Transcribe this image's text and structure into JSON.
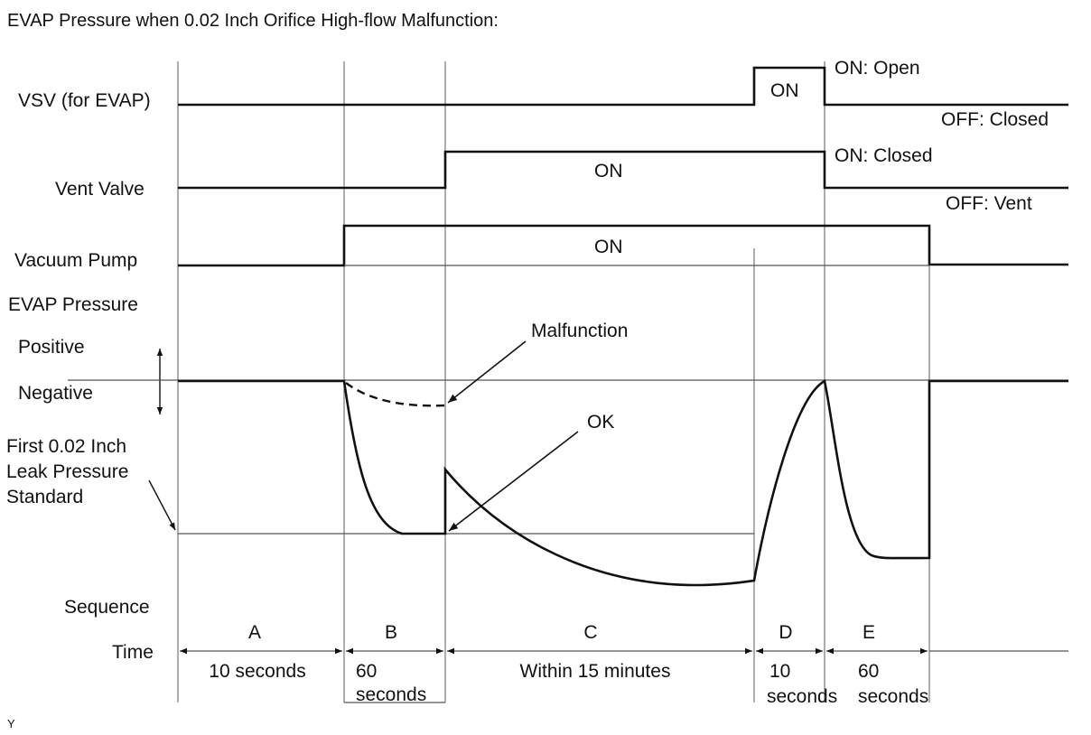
{
  "title": "EVAP Pressure when 0.02 Inch Orifice High-flow Malfunction:",
  "signals": {
    "vsv": "VSV (for EVAP)",
    "vent": "Vent Valve",
    "pump": "Vacuum Pump",
    "evap": "EVAP Pressure"
  },
  "states": {
    "vsv_on": "ON",
    "vsv_on_desc": "ON: Open",
    "vsv_off_desc": "OFF: Closed",
    "vent_on": "ON",
    "vent_on_desc": "ON: Closed",
    "vent_off_desc": "OFF: Vent",
    "pump_on": "ON"
  },
  "pressure": {
    "positive": "Positive",
    "negative": "Negative",
    "standard_lines": [
      "First 0.02 Inch",
      "Leak Pressure",
      "Standard"
    ],
    "malfunction": "Malfunction",
    "ok": "OK"
  },
  "sequence": {
    "label": "Sequence",
    "time_label": "Time",
    "phases": [
      {
        "id": "A",
        "time": [
          "10 seconds"
        ]
      },
      {
        "id": "B",
        "time": [
          "60",
          "seconds"
        ]
      },
      {
        "id": "C",
        "time": [
          "Within 15 minutes"
        ]
      },
      {
        "id": "D",
        "time": [
          "10",
          "seconds"
        ]
      },
      {
        "id": "E",
        "time": [
          "60",
          "seconds"
        ]
      }
    ]
  },
  "footer": "Y"
}
